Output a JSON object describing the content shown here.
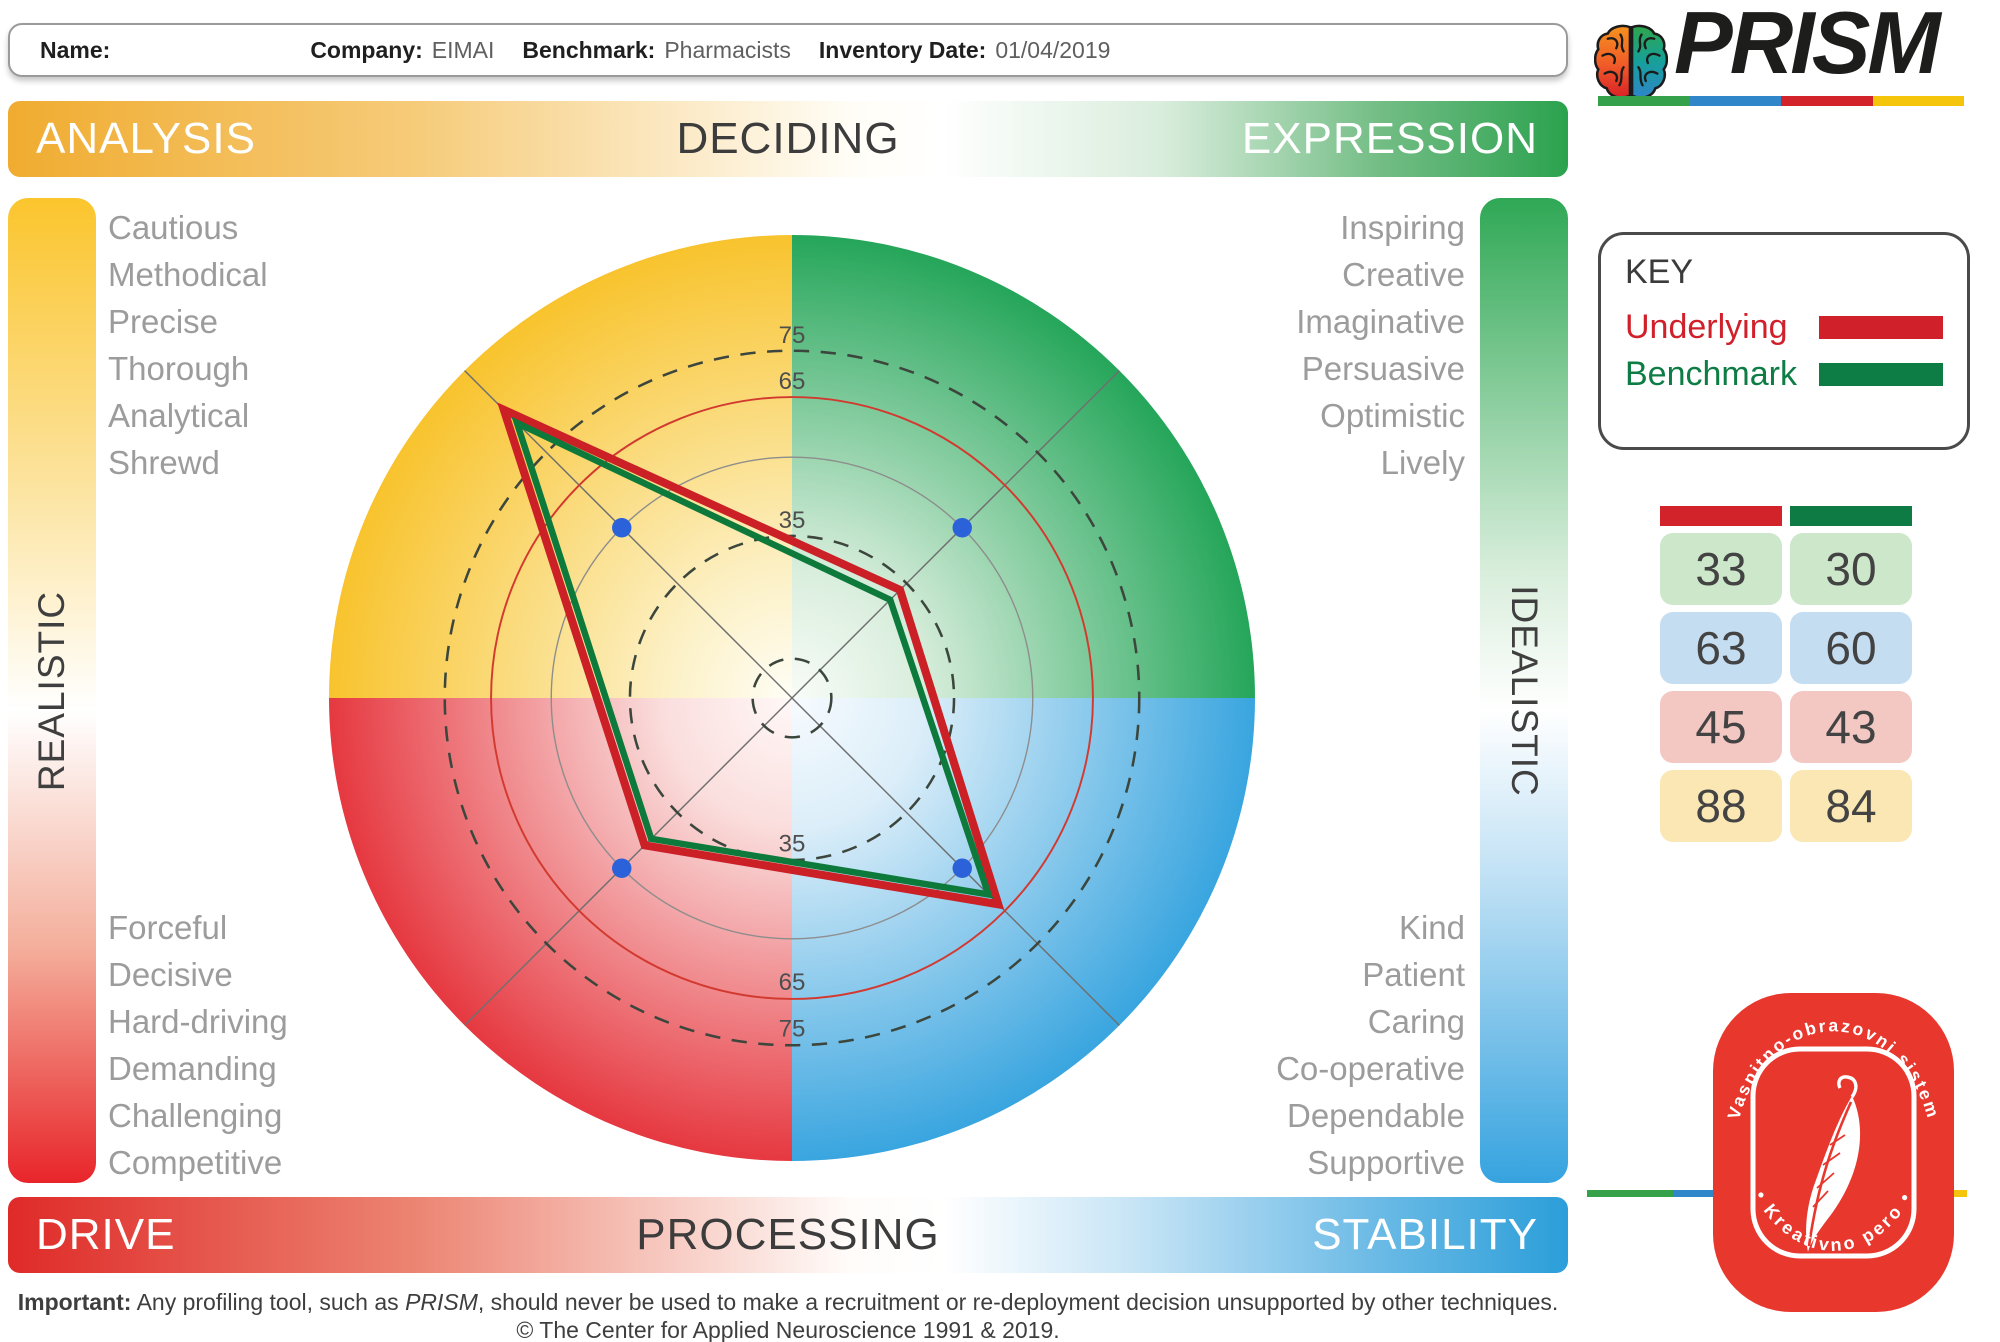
{
  "header": {
    "name_label": "Name:",
    "company_label": "Company:",
    "company_value": "EIMAI",
    "benchmark_label": "Benchmark:",
    "benchmark_value": "Pharmacists",
    "date_label": "Inventory Date:",
    "date_value": "01/04/2019"
  },
  "logo": {
    "brand": "PRISM",
    "underline_colors": [
      "#35A14A",
      "#2F87C9",
      "#D2232A",
      "#F5C50B"
    ]
  },
  "banners": {
    "top_left": "ANALYSIS",
    "top_center": "DECIDING",
    "top_right": "EXPRESSION",
    "bottom_left": "DRIVE",
    "bottom_center": "PROCESSING",
    "bottom_right": "STABILITY"
  },
  "side_labels": {
    "left": "REALISTIC",
    "right": "IDEALISTIC"
  },
  "word_lists": {
    "analysis": [
      "Cautious",
      "Methodical",
      "Precise",
      "Thorough",
      "Analytical",
      "Shrewd"
    ],
    "expression": [
      "Inspiring",
      "Creative",
      "Imaginative",
      "Persuasive",
      "Optimistic",
      "Lively"
    ],
    "drive": [
      "Forceful",
      "Decisive",
      "Hard-driving",
      "Demanding",
      "Challenging",
      "Competitive"
    ],
    "stability": [
      "Kind",
      "Patient",
      "Caring",
      "Co-operative",
      "Dependable",
      "Supportive"
    ]
  },
  "key": {
    "title": "KEY",
    "underlying_label": "Underlying",
    "benchmark_label": "Benchmark",
    "underlying_color": "#D0202A",
    "benchmark_color": "#0E7C45"
  },
  "score_table": {
    "header_colors": [
      "#D2232A",
      "#0E7B45"
    ],
    "rows": [
      {
        "quadrant": "expression",
        "underlying": "33",
        "benchmark": "30",
        "tint": "#CDE7CA"
      },
      {
        "quadrant": "stability",
        "underlying": "63",
        "benchmark": "60",
        "tint": "#C5DDF1"
      },
      {
        "quadrant": "drive",
        "underlying": "45",
        "benchmark": "43",
        "tint": "#F3C8C3"
      },
      {
        "quadrant": "analysis",
        "underlying": "88",
        "benchmark": "84",
        "tint": "#FAE7B4"
      }
    ]
  },
  "chart_data": {
    "type": "radar",
    "title": "PRISM quadrant profile map",
    "categories": [
      "ANALYSIS",
      "EXPRESSION",
      "STABILITY",
      "DRIVE"
    ],
    "series": [
      {
        "id": "underlying",
        "name": "Underlying",
        "color": "#CB2026",
        "values": [
          88,
          33,
          63,
          45
        ]
      },
      {
        "id": "benchmark",
        "name": "Benchmark",
        "color": "#0D7A3C",
        "values": [
          84,
          30,
          60,
          43
        ]
      }
    ],
    "scale_max": 100,
    "rings": [
      {
        "value": 8.5,
        "style": "dashed",
        "labeled": false
      },
      {
        "value": 35,
        "style": "dashed",
        "labeled": true
      },
      {
        "value": 52,
        "style": "solid-gray",
        "labeled": false
      },
      {
        "value": 65,
        "style": "solid-red",
        "labeled": true
      },
      {
        "value": 75,
        "style": "dashed",
        "labeled": true
      }
    ],
    "ring_tick_labels": [
      "35",
      "65",
      "75"
    ],
    "axis_marker_value": 52,
    "axis_marker_color": "#2B62D9",
    "quadrant_colors": {
      "analysis": "#F8C32D",
      "expression": "#25A65A",
      "stability": "#39A5DF",
      "drive": "#E63840"
    },
    "legend_position": "right",
    "grid": true
  },
  "seal": {
    "top_text": "Vaspitno-obrazovni sistem",
    "bottom_text": "• Kreativno pero •"
  },
  "footer": {
    "important_label": "Important:",
    "important_pre": " Any profiling tool, such as ",
    "important_brand": "PRISM",
    "important_post": ", should never be used to make a recruitment or re-deployment decision unsupported by other techniques.",
    "copyright": "© The Center for Applied Neuroscience 1991 & 2019."
  }
}
